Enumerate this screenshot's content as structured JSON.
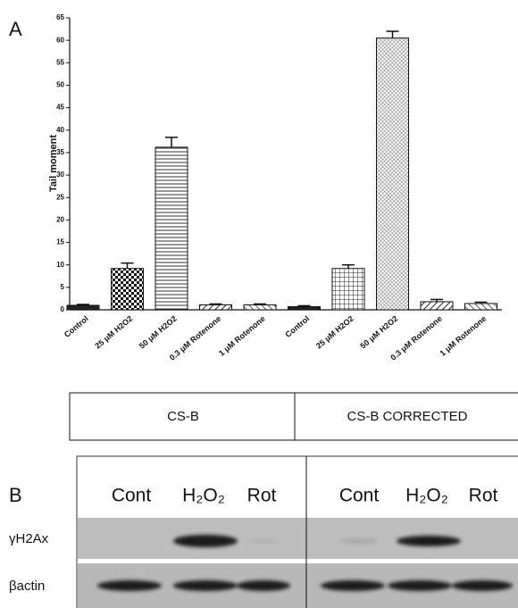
{
  "panel_a_label": "A",
  "chart_data": {
    "type": "bar",
    "y_label": "Tail moment",
    "categories": [
      "Control",
      "25 μM H2O2",
      "50  μM H2O2",
      "0.3 μM Rotenone",
      "1 μM Rotenone",
      "Control",
      "25 μM H2O2",
      "50  μM H2O2",
      "0.3 μM Rotenone",
      "1 μM Rotenone"
    ],
    "values": [
      1.0,
      9.2,
      36.2,
      1.1,
      1.1,
      0.7,
      9.2,
      60.5,
      1.8,
      1.4
    ],
    "errors": [
      0.2,
      1.2,
      2.2,
      0.2,
      0.2,
      0.2,
      0.8,
      1.5,
      0.5,
      0.3
    ],
    "ylim": [
      0,
      65
    ],
    "yticks": [
      0,
      5,
      10,
      15,
      20,
      25,
      30,
      35,
      40,
      45,
      50,
      55,
      60,
      65
    ],
    "groups": [
      "CS-B",
      "CS-B CORRECTED"
    ]
  },
  "blot": {
    "label": "B",
    "columns": [
      "Cont",
      "H₂O₂",
      "Rot",
      "Cont",
      "H₂O₂",
      "Rot"
    ],
    "rows": [
      "γH2Ax",
      "βactin"
    ]
  }
}
